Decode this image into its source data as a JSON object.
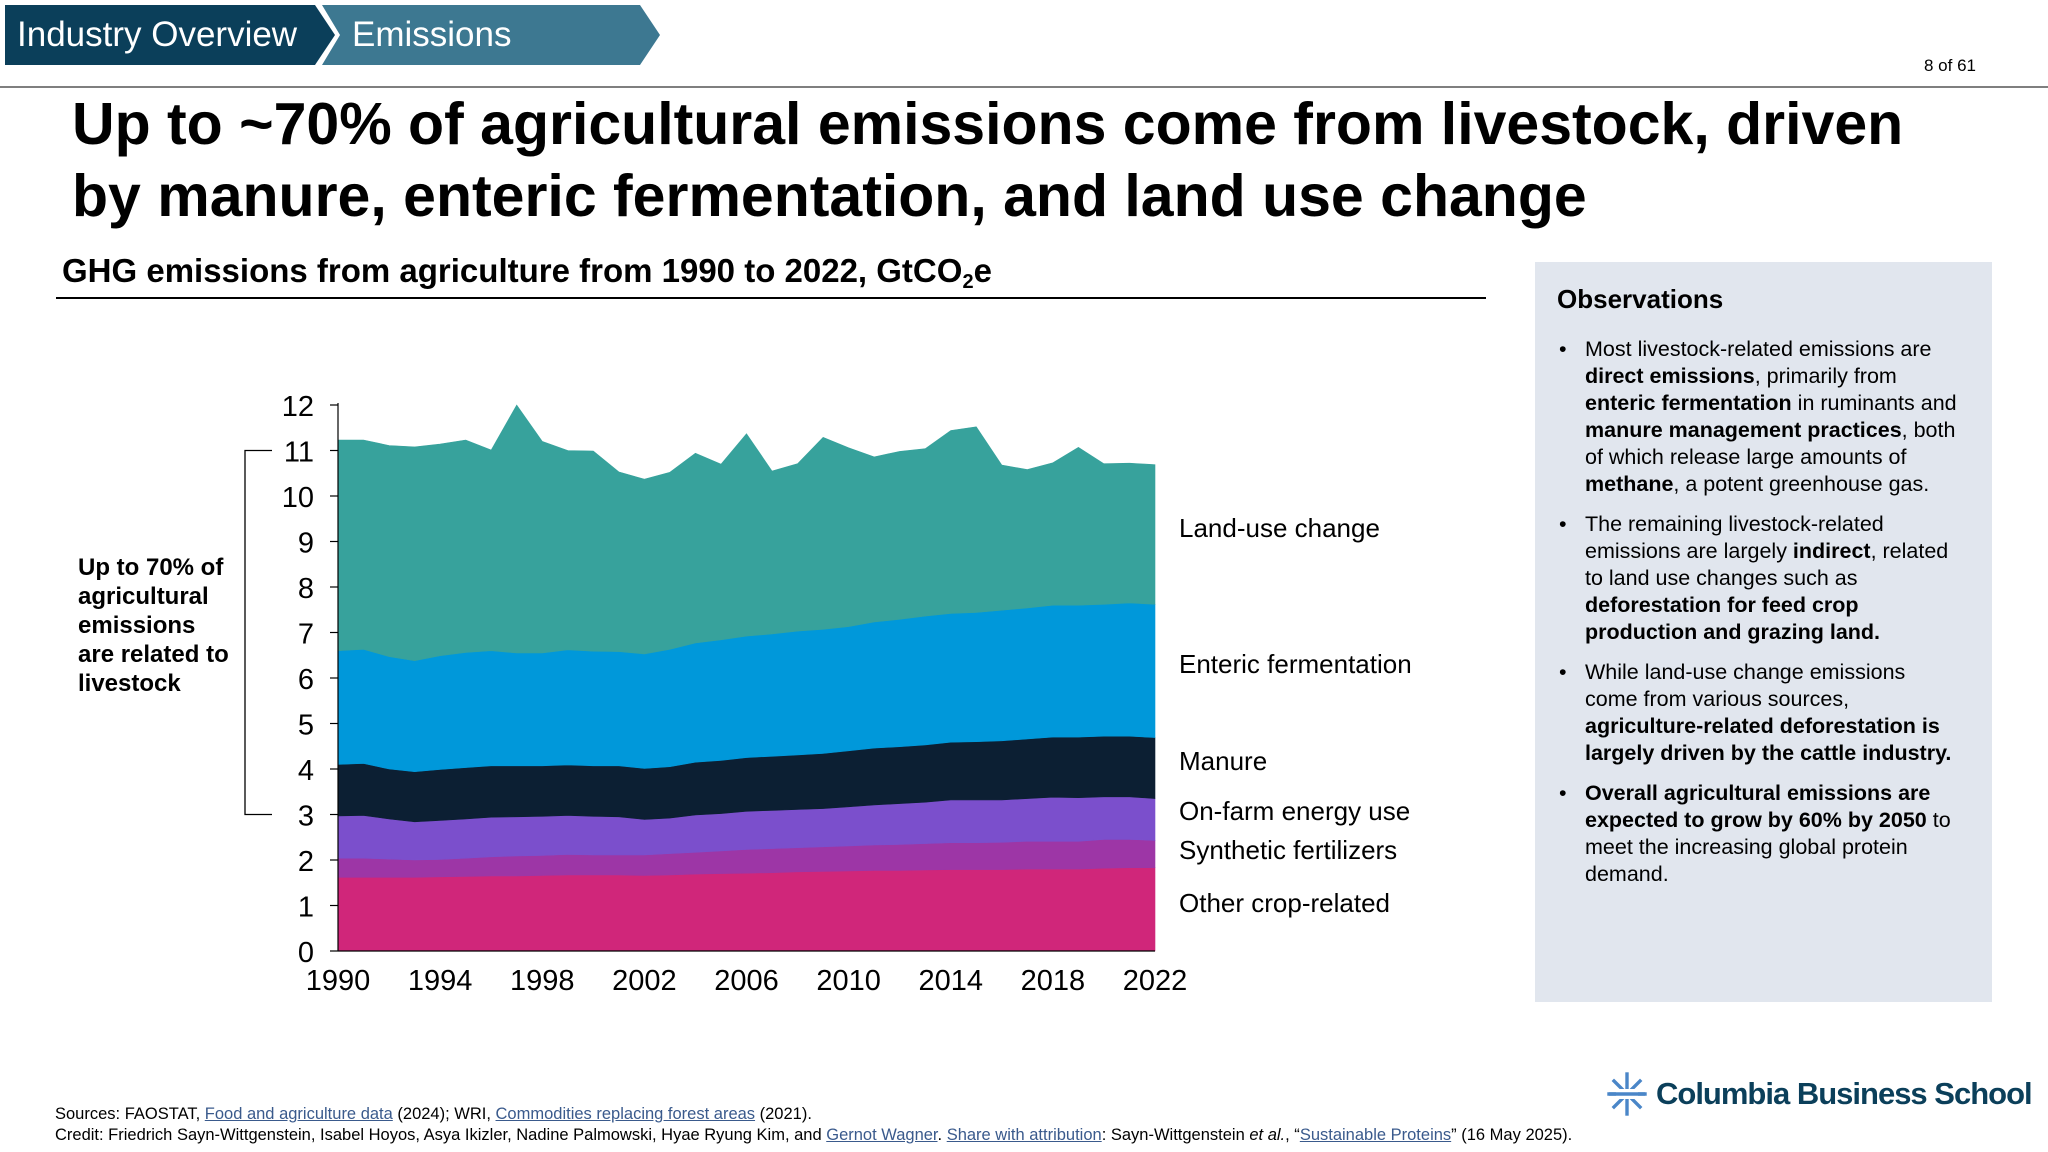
{
  "breadcrumb": {
    "section": "Industry Overview",
    "subsection": "Emissions"
  },
  "page_number": "8 of 61",
  "headline": "Up to ~70% of agricultural emissions come from livestock, driven by manure, enteric fermentation, and land use change",
  "chart_title_main": "GHG emissions from agriculture from 1990 to 2022, GtCO",
  "chart_title_sub": "2",
  "chart_title_tail": "e",
  "bracket_note": "Up to 70% of agricultural emissions are related to livestock",
  "observations": {
    "title": "Observations",
    "items": [
      {
        "parts": [
          {
            "t": "Most livestock-related emissions are "
          },
          {
            "t": "direct emissions",
            "b": true
          },
          {
            "t": ", primarily from "
          },
          {
            "t": "enteric fermentation",
            "b": true
          },
          {
            "t": " in ruminants and "
          },
          {
            "t": "manure management practices",
            "b": true
          },
          {
            "t": ", both of which release large amounts of "
          },
          {
            "t": "methane",
            "b": true
          },
          {
            "t": ", a potent greenhouse gas."
          }
        ]
      },
      {
        "parts": [
          {
            "t": "The remaining livestock-related emissions are largely "
          },
          {
            "t": "indirect",
            "b": true
          },
          {
            "t": ", related to land use changes such as "
          },
          {
            "t": "deforestation for feed crop production and grazing land.",
            "b": true
          }
        ]
      },
      {
        "parts": [
          {
            "t": "While land-use change emissions come from various sources, "
          },
          {
            "t": "agriculture-related deforestation is largely driven by the cattle industry.",
            "b": true
          }
        ]
      },
      {
        "parts": [
          {
            "t": "Overall agricultural emissions are expected to grow by 60% by 2050",
            "b": true
          },
          {
            "t": " to meet the increasing global protein demand."
          }
        ]
      }
    ]
  },
  "footer": {
    "sources_prefix": "Sources: FAOSTAT, ",
    "link1": "Food and agriculture data",
    "mid1": " (2024); WRI, ",
    "link2": "Commodities replacing forest areas",
    "end1": " (2021).",
    "credit_prefix": "Credit: Friedrich Sayn-Wittgenstein, Isabel Hoyos, Asya Ikizler, Nadine Palmowski, Hyae Ryung Kim, and ",
    "link3": "Gernot Wagner",
    "mid2": ". ",
    "link4": "Share with attribution",
    "mid3": ": Sayn-Wittgenstein ",
    "etal": "et al.",
    "mid4": ", “",
    "link5": "Sustainable Proteins",
    "end2": "” (16 May 2025)."
  },
  "logo_text": "Columbia Business School",
  "chart_data": {
    "type": "area",
    "stacked": true,
    "title": "GHG emissions from agriculture from 1990 to 2022, GtCO2e",
    "xlabel": "",
    "ylabel": "",
    "ylim": [
      0,
      12
    ],
    "yticks": [
      0,
      1,
      2,
      3,
      4,
      5,
      6,
      7,
      8,
      9,
      10,
      11,
      12
    ],
    "xticks": [
      1990,
      1994,
      1998,
      2002,
      2006,
      2010,
      2014,
      2018,
      2022
    ],
    "x": [
      1990,
      1991,
      1992,
      1993,
      1994,
      1995,
      1996,
      1997,
      1998,
      1999,
      2000,
      2001,
      2002,
      2003,
      2004,
      2005,
      2006,
      2007,
      2008,
      2009,
      2010,
      2011,
      2012,
      2013,
      2014,
      2015,
      2016,
      2017,
      2018,
      2019,
      2020,
      2021,
      2022
    ],
    "series": [
      {
        "name": "Other crop-related",
        "color": "#d0267a",
        "values": [
          1.62,
          1.62,
          1.62,
          1.62,
          1.63,
          1.64,
          1.65,
          1.65,
          1.66,
          1.67,
          1.67,
          1.67,
          1.66,
          1.67,
          1.69,
          1.7,
          1.71,
          1.72,
          1.74,
          1.75,
          1.76,
          1.77,
          1.77,
          1.78,
          1.79,
          1.79,
          1.79,
          1.8,
          1.8,
          1.8,
          1.82,
          1.83,
          1.83
        ]
      },
      {
        "name": "Synthetic fertilizers",
        "color": "#9d36a6",
        "values": [
          0.42,
          0.42,
          0.4,
          0.38,
          0.38,
          0.4,
          0.42,
          0.44,
          0.44,
          0.45,
          0.44,
          0.44,
          0.45,
          0.47,
          0.48,
          0.5,
          0.52,
          0.53,
          0.53,
          0.54,
          0.55,
          0.56,
          0.57,
          0.58,
          0.59,
          0.59,
          0.6,
          0.61,
          0.61,
          0.61,
          0.63,
          0.62,
          0.6
        ]
      },
      {
        "name": "On-farm energy use",
        "color": "#7b4fcc",
        "values": [
          0.93,
          0.94,
          0.88,
          0.84,
          0.86,
          0.86,
          0.87,
          0.86,
          0.86,
          0.86,
          0.85,
          0.84,
          0.78,
          0.78,
          0.82,
          0.82,
          0.84,
          0.84,
          0.84,
          0.84,
          0.86,
          0.88,
          0.9,
          0.91,
          0.94,
          0.94,
          0.93,
          0.94,
          0.97,
          0.96,
          0.94,
          0.94,
          0.92
        ]
      },
      {
        "name": "Manure",
        "color": "#0c1f33",
        "values": [
          1.13,
          1.14,
          1.1,
          1.1,
          1.12,
          1.13,
          1.13,
          1.12,
          1.11,
          1.11,
          1.11,
          1.12,
          1.12,
          1.13,
          1.16,
          1.17,
          1.18,
          1.19,
          1.2,
          1.21,
          1.23,
          1.25,
          1.25,
          1.26,
          1.27,
          1.28,
          1.3,
          1.31,
          1.32,
          1.33,
          1.33,
          1.33,
          1.34
        ]
      },
      {
        "name": "Enteric fermentation",
        "color": "#0098da",
        "values": [
          2.5,
          2.51,
          2.47,
          2.44,
          2.5,
          2.53,
          2.53,
          2.48,
          2.48,
          2.53,
          2.52,
          2.51,
          2.52,
          2.58,
          2.62,
          2.65,
          2.67,
          2.69,
          2.72,
          2.73,
          2.73,
          2.77,
          2.8,
          2.83,
          2.83,
          2.84,
          2.87,
          2.88,
          2.9,
          2.9,
          2.9,
          2.93,
          2.93
        ]
      },
      {
        "name": "Land-use change",
        "color": "#37a29c",
        "values": [
          4.63,
          4.6,
          4.64,
          4.7,
          4.65,
          4.67,
          4.41,
          5.45,
          4.65,
          4.38,
          4.4,
          3.95,
          3.84,
          3.89,
          4.17,
          3.86,
          4.45,
          3.58,
          3.68,
          4.22,
          3.93,
          3.63,
          3.69,
          3.68,
          4.02,
          4.08,
          3.19,
          3.04,
          3.13,
          3.47,
          3.09,
          3.07,
          3.07
        ]
      }
    ],
    "legend": "right"
  }
}
